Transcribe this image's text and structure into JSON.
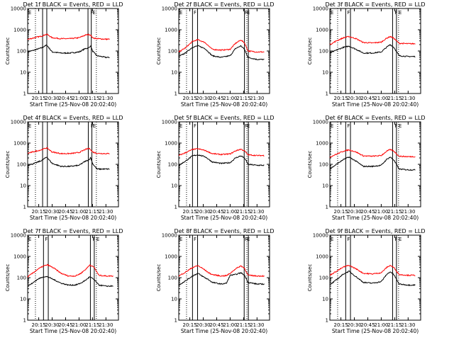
{
  "page": {
    "colors": {
      "background": "#ffffff",
      "events": "#000000",
      "lld": "#ff0000"
    }
  },
  "axes_common": {
    "ylabel": "Counts/sec",
    "xlabel": "Start Time (25-Nov-08 20:02:40)",
    "xticks": [
      "20:15",
      "20:30",
      "20:45",
      "21:00",
      "21:15",
      "21:30"
    ],
    "yticks": [
      "1",
      "10",
      "100",
      "1000",
      "10000"
    ],
    "yscale": "log",
    "ylim": [
      1,
      10000
    ],
    "xlim": [
      "20:02:40",
      "21:44:00"
    ]
  },
  "chart_data": [
    {
      "type": "line",
      "title": "Det 1f BLACK = Events, RED = LLD",
      "markers": {
        "dotted": [
          "20:11:20",
          "21:19:20"
        ],
        "solid": [
          "20:19:20",
          "20:24:00",
          "21:10:00",
          "21:13:40"
        ],
        "flags": [
          {
            "t": "20:03:20",
            "label": "E"
          },
          {
            "t": "21:12:40",
            "label": "F"
          },
          {
            "t": "21:15:00",
            "label": "E"
          }
        ]
      },
      "series": [
        {
          "name": "Events",
          "color": "#000000",
          "t": [
            "20:02:40",
            "20:10:00",
            "20:18:00",
            "20:24:00",
            "20:30:00",
            "20:40:00",
            "20:50:00",
            "21:00:00",
            "21:07:00",
            "21:11:00",
            "21:13:00",
            "21:15:00",
            "21:20:00",
            "21:30:00",
            "21:34:00"
          ],
          "v": [
            90,
            110,
            140,
            190,
            90,
            80,
            80,
            90,
            130,
            140,
            180,
            100,
            60,
            50,
            50
          ]
        },
        {
          "name": "LLD",
          "color": "#ff0000",
          "t": [
            "20:02:40",
            "20:10:00",
            "20:18:00",
            "20:24:00",
            "20:30:00",
            "20:40:00",
            "20:50:00",
            "21:00:00",
            "21:07:00",
            "21:11:00",
            "21:13:00",
            "21:15:00",
            "21:20:00",
            "21:30:00",
            "21:34:00"
          ],
          "v": [
            350,
            420,
            500,
            620,
            420,
            380,
            380,
            420,
            560,
            600,
            560,
            420,
            380,
            360,
            360
          ]
        }
      ]
    },
    {
      "type": "line",
      "title": "Det 2f BLACK = Events, RED = LLD",
      "markers": {
        "dotted": [
          "20:11:20",
          "21:18:40"
        ],
        "solid": [
          "20:18:00",
          "20:23:40",
          "21:16:00",
          "21:20:20"
        ],
        "flags": [
          {
            "t": "20:03:20",
            "label": "E"
          },
          {
            "t": "20:19:20",
            "label": "F"
          },
          {
            "t": "21:16:20",
            "label": "F"
          },
          {
            "t": "21:18:40",
            "label": "E"
          }
        ]
      },
      "series": [
        {
          "name": "Events",
          "color": "#000000",
          "t": [
            "20:02:40",
            "20:10:00",
            "20:18:00",
            "20:24:00",
            "20:32:00",
            "20:40:00",
            "20:50:00",
            "21:00:00",
            "21:06:00",
            "21:12:00",
            "21:16:00",
            "21:20:00",
            "21:30:00",
            "21:38:00"
          ],
          "v": [
            55,
            80,
            150,
            175,
            130,
            60,
            50,
            60,
            130,
            175,
            120,
            50,
            40,
            40
          ]
        },
        {
          "name": "LLD",
          "color": "#ff0000",
          "t": [
            "20:02:40",
            "20:10:00",
            "20:18:00",
            "20:24:00",
            "20:32:00",
            "20:40:00",
            "20:50:00",
            "21:00:00",
            "21:06:00",
            "21:12:00",
            "21:16:00",
            "21:20:00",
            "21:30:00",
            "21:38:00"
          ],
          "v": [
            90,
            140,
            280,
            340,
            250,
            120,
            110,
            120,
            230,
            330,
            240,
            100,
            90,
            90
          ]
        }
      ]
    },
    {
      "type": "line",
      "title": "Det 3f BLACK = Events, RED = LLD",
      "markers": {
        "dotted": [
          "20:11:20",
          "21:19:20"
        ],
        "solid": [
          "20:20:20",
          "20:25:40",
          "21:12:40",
          "21:17:00"
        ],
        "flags": [
          {
            "t": "20:03:20",
            "label": "E"
          },
          {
            "t": "20:22:00",
            "label": "F"
          },
          {
            "t": "21:15:00",
            "label": "F"
          },
          {
            "t": "21:19:20",
            "label": "E"
          }
        ]
      },
      "series": [
        {
          "name": "Events",
          "color": "#000000",
          "t": [
            "20:02:40",
            "20:10:00",
            "20:18:00",
            "20:24:00",
            "20:32:00",
            "20:40:00",
            "20:50:00",
            "21:00:00",
            "21:06:00",
            "21:10:00",
            "21:14:00",
            "21:20:00",
            "21:30:00",
            "21:38:00"
          ],
          "v": [
            80,
            110,
            150,
            170,
            120,
            80,
            80,
            90,
            150,
            200,
            150,
            60,
            55,
            55
          ]
        },
        {
          "name": "LLD",
          "color": "#ff0000",
          "t": [
            "20:02:40",
            "20:10:00",
            "20:18:00",
            "20:24:00",
            "20:32:00",
            "20:40:00",
            "20:50:00",
            "21:00:00",
            "21:06:00",
            "21:10:00",
            "21:14:00",
            "21:20:00",
            "21:30:00",
            "21:38:00"
          ],
          "v": [
            200,
            300,
            420,
            480,
            380,
            250,
            240,
            260,
            400,
            480,
            400,
            230,
            220,
            220
          ]
        }
      ]
    },
    {
      "type": "line",
      "title": "Det 4f BLACK = Events, RED = LLD",
      "markers": {
        "dotted": [
          "20:11:20",
          "21:19:20"
        ],
        "solid": [
          "20:19:20",
          "20:24:40",
          "21:10:20",
          "21:14:20"
        ],
        "flags": [
          {
            "t": "20:03:20",
            "label": "E"
          },
          {
            "t": "21:13:00",
            "label": "F"
          },
          {
            "t": "21:15:20",
            "label": "E"
          }
        ]
      },
      "series": [
        {
          "name": "Events",
          "color": "#000000",
          "t": [
            "20:02:40",
            "20:10:00",
            "20:18:00",
            "20:24:00",
            "20:30:00",
            "20:40:00",
            "20:50:00",
            "21:00:00",
            "21:07:00",
            "21:11:00",
            "21:13:00",
            "21:15:00",
            "21:20:00",
            "21:30:00",
            "21:34:00"
          ],
          "v": [
            90,
            110,
            150,
            220,
            110,
            80,
            80,
            90,
            140,
            160,
            210,
            110,
            60,
            60,
            60
          ]
        },
        {
          "name": "LLD",
          "color": "#ff0000",
          "t": [
            "20:02:40",
            "20:10:00",
            "20:18:00",
            "20:24:00",
            "20:30:00",
            "20:40:00",
            "20:50:00",
            "21:00:00",
            "21:07:00",
            "21:11:00",
            "21:13:00",
            "21:15:00",
            "21:20:00",
            "21:30:00",
            "21:34:00"
          ],
          "v": [
            330,
            400,
            480,
            600,
            380,
            320,
            320,
            360,
            500,
            560,
            500,
            380,
            330,
            320,
            320
          ]
        }
      ]
    },
    {
      "type": "line",
      "title": "Det 5f BLACK = Events, RED = LLD",
      "markers": {
        "dotted": [
          "20:11:20",
          "21:18:40"
        ],
        "solid": [
          "20:18:00",
          "20:23:40",
          "21:15:40",
          "21:20:20"
        ],
        "flags": [
          {
            "t": "20:03:20",
            "label": "E"
          },
          {
            "t": "20:19:20",
            "label": "F"
          },
          {
            "t": "21:16:20",
            "label": "F"
          },
          {
            "t": "21:18:40",
            "label": "E"
          }
        ]
      },
      "series": [
        {
          "name": "Events",
          "color": "#000000",
          "t": [
            "20:02:40",
            "20:10:00",
            "20:18:00",
            "20:24:00",
            "20:32:00",
            "20:40:00",
            "20:50:00",
            "21:00:00",
            "21:06:00",
            "21:12:00",
            "21:16:00",
            "21:20:00",
            "21:30:00",
            "21:38:00"
          ],
          "v": [
            90,
            140,
            250,
            280,
            230,
            130,
            110,
            120,
            200,
            250,
            200,
            100,
            90,
            90
          ]
        },
        {
          "name": "LLD",
          "color": "#ff0000",
          "t": [
            "20:02:40",
            "20:10:00",
            "20:18:00",
            "20:24:00",
            "20:32:00",
            "20:40:00",
            "20:50:00",
            "21:00:00",
            "21:06:00",
            "21:12:00",
            "21:16:00",
            "21:20:00",
            "21:30:00",
            "21:38:00"
          ],
          "v": [
            260,
            350,
            500,
            540,
            450,
            320,
            290,
            310,
            430,
            520,
            430,
            280,
            260,
            260
          ]
        }
      ]
    },
    {
      "type": "line",
      "title": "Det 6f BLACK = Events, RED = LLD",
      "markers": {
        "dotted": [
          "20:11:20",
          "21:19:20"
        ],
        "solid": [
          "20:20:20",
          "20:25:40",
          "21:12:40",
          "21:17:00"
        ],
        "flags": [
          {
            "t": "20:03:20",
            "label": "E"
          },
          {
            "t": "20:22:00",
            "label": "F"
          },
          {
            "t": "21:15:00",
            "label": "F"
          },
          {
            "t": "21:19:20",
            "label": "E"
          }
        ]
      },
      "series": [
        {
          "name": "Events",
          "color": "#000000",
          "t": [
            "20:02:40",
            "20:10:00",
            "20:18:00",
            "20:24:00",
            "20:32:00",
            "20:40:00",
            "20:50:00",
            "21:00:00",
            "21:06:00",
            "21:10:00",
            "21:14:00",
            "21:20:00",
            "21:30:00",
            "21:38:00"
          ],
          "v": [
            60,
            100,
            170,
            220,
            140,
            80,
            80,
            90,
            170,
            220,
            160,
            60,
            55,
            55
          ]
        },
        {
          "name": "LLD",
          "color": "#ff0000",
          "t": [
            "20:02:40",
            "20:10:00",
            "20:18:00",
            "20:24:00",
            "20:32:00",
            "20:40:00",
            "20:50:00",
            "21:00:00",
            "21:06:00",
            "21:10:00",
            "21:14:00",
            "21:20:00",
            "21:30:00",
            "21:38:00"
          ],
          "v": [
            220,
            300,
            420,
            480,
            380,
            250,
            240,
            260,
            410,
            500,
            420,
            240,
            230,
            230
          ]
        }
      ]
    },
    {
      "type": "line",
      "title": "Det 7f BLACK = Events, RED = LLD",
      "markers": {
        "dotted": [
          "20:11:20",
          "21:19:20"
        ],
        "solid": [
          "20:20:20",
          "20:25:40",
          "21:12:40",
          "21:17:00"
        ],
        "flags": [
          {
            "t": "20:03:20",
            "label": "E"
          },
          {
            "t": "20:22:00",
            "label": "F"
          },
          {
            "t": "21:15:00",
            "label": "F"
          },
          {
            "t": "21:19:20",
            "label": "E"
          }
        ]
      },
      "series": [
        {
          "name": "Events",
          "color": "#000000",
          "t": [
            "20:02:40",
            "20:08:00",
            "20:14:00",
            "20:20:00",
            "20:25:00",
            "20:32:00",
            "20:40:00",
            "20:48:00",
            "20:56:00",
            "21:02:00",
            "21:08:00",
            "21:12:00",
            "21:17:00",
            "21:22:00",
            "21:30:00",
            "21:38:00"
          ],
          "v": [
            40,
            55,
            85,
            110,
            110,
            80,
            55,
            45,
            45,
            55,
            80,
            110,
            80,
            45,
            40,
            40
          ]
        },
        {
          "name": "LLD",
          "color": "#ff0000",
          "t": [
            "20:02:40",
            "20:08:00",
            "20:14:00",
            "20:20:00",
            "20:25:00",
            "20:32:00",
            "20:40:00",
            "20:48:00",
            "20:56:00",
            "21:02:00",
            "21:08:00",
            "21:12:00",
            "21:17:00",
            "21:22:00",
            "21:30:00",
            "21:38:00"
          ],
          "v": [
            110,
            160,
            250,
            350,
            400,
            280,
            160,
            120,
            120,
            160,
            260,
            400,
            300,
            130,
            120,
            120
          ]
        }
      ]
    },
    {
      "type": "line",
      "title": "Det 8f BLACK = Events, RED = LLD",
      "markers": {
        "dotted": [
          "20:11:20",
          "21:18:40"
        ],
        "solid": [
          "20:18:00",
          "20:23:40",
          "21:15:40",
          "21:20:20"
        ],
        "flags": [
          {
            "t": "20:03:20",
            "label": "E"
          },
          {
            "t": "20:19:20",
            "label": "F"
          },
          {
            "t": "21:16:20",
            "label": "F"
          },
          {
            "t": "21:18:40",
            "label": "E"
          }
        ]
      },
      "series": [
        {
          "name": "Events",
          "color": "#000000",
          "t": [
            "20:02:40",
            "20:10:00",
            "20:18:00",
            "20:24:00",
            "20:30:00",
            "20:36:00",
            "20:40:00",
            "20:50:00",
            "20:56:00",
            "21:00:00",
            "21:06:00",
            "21:12:00",
            "21:16:00",
            "21:20:00",
            "21:30:00",
            "21:38:00"
          ],
          "v": [
            45,
            70,
            120,
            160,
            110,
            80,
            60,
            50,
            55,
            130,
            140,
            170,
            130,
            60,
            50,
            50
          ]
        },
        {
          "name": "LLD",
          "color": "#ff0000",
          "t": [
            "20:02:40",
            "20:10:00",
            "20:18:00",
            "20:24:00",
            "20:30:00",
            "20:36:00",
            "20:40:00",
            "20:50:00",
            "20:56:00",
            "21:00:00",
            "21:06:00",
            "21:12:00",
            "21:16:00",
            "21:20:00",
            "21:30:00",
            "21:38:00"
          ],
          "v": [
            120,
            180,
            300,
            370,
            260,
            170,
            140,
            120,
            125,
            160,
            260,
            360,
            280,
            130,
            120,
            120
          ]
        }
      ]
    },
    {
      "type": "line",
      "title": "Det 9f BLACK = Events, RED = LLD",
      "markers": {
        "dotted": [
          "20:11:20",
          "21:19:20"
        ],
        "solid": [
          "20:20:20",
          "20:25:40",
          "21:12:40",
          "21:17:00"
        ],
        "flags": [
          {
            "t": "20:03:20",
            "label": "E"
          },
          {
            "t": "20:22:00",
            "label": "F"
          },
          {
            "t": "21:15:00",
            "label": "F"
          },
          {
            "t": "21:19:20",
            "label": "E"
          }
        ]
      },
      "series": [
        {
          "name": "Events",
          "color": "#000000",
          "t": [
            "20:02:40",
            "20:10:00",
            "20:18:00",
            "20:24:00",
            "20:32:00",
            "20:40:00",
            "20:50:00",
            "21:00:00",
            "21:06:00",
            "21:10:00",
            "21:14:00",
            "21:20:00",
            "21:30:00",
            "21:38:00"
          ],
          "v": [
            45,
            80,
            150,
            200,
            110,
            60,
            55,
            65,
            140,
            190,
            140,
            50,
            45,
            45
          ]
        },
        {
          "name": "LLD",
          "color": "#ff0000",
          "t": [
            "20:02:40",
            "20:10:00",
            "20:18:00",
            "20:24:00",
            "20:32:00",
            "20:40:00",
            "20:50:00",
            "21:00:00",
            "21:06:00",
            "21:10:00",
            "21:14:00",
            "21:20:00",
            "21:30:00",
            "21:38:00"
          ],
          "v": [
            130,
            200,
            320,
            380,
            260,
            160,
            150,
            170,
            300,
            380,
            300,
            140,
            130,
            130
          ]
        }
      ]
    }
  ]
}
